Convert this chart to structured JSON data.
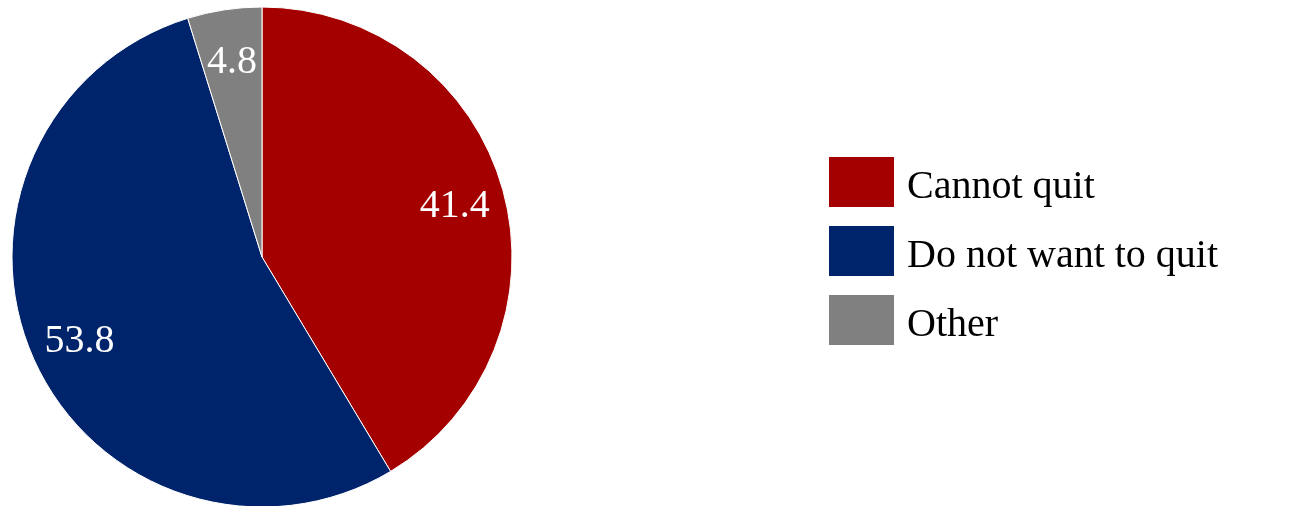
{
  "chart_data": {
    "type": "pie",
    "categories": [
      "Cannot quit",
      "Do not want to quit",
      "Other"
    ],
    "values": [
      41.4,
      53.8,
      4.8
    ],
    "colors": [
      "#a50000",
      "#00246b",
      "#808080"
    ],
    "data_labels": true,
    "legend": "right"
  }
}
